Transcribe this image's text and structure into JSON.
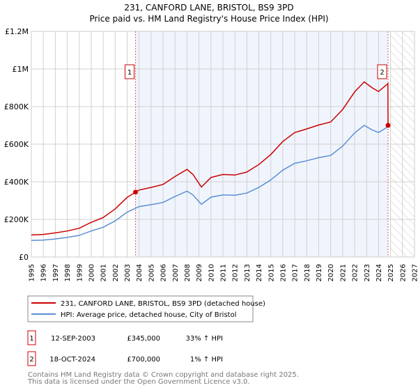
{
  "chart_data": {
    "type": "line",
    "title": "231, CANFORD LANE, BRISTOL, BS9 3PD",
    "subtitle": "Price paid vs. HM Land Registry's House Price Index (HPI)",
    "xlabel": "",
    "ylabel": "",
    "xlim": [
      1995,
      2027
    ],
    "ylim": [
      0,
      1200000
    ],
    "y_ticks": [
      0,
      200000,
      400000,
      600000,
      800000,
      1000000,
      1200000
    ],
    "y_tick_labels": [
      "£0",
      "£200K",
      "£400K",
      "£600K",
      "£800K",
      "£1M",
      "£1.2M"
    ],
    "x_ticks": [
      1995,
      1996,
      1997,
      1998,
      1999,
      2000,
      2001,
      2002,
      2003,
      2004,
      2005,
      2006,
      2007,
      2008,
      2009,
      2010,
      2011,
      2012,
      2013,
      2014,
      2015,
      2016,
      2017,
      2018,
      2019,
      2020,
      2021,
      2022,
      2023,
      2024,
      2025,
      2026,
      2027
    ],
    "grid": true,
    "hatched_future_from": 2025,
    "series": [
      {
        "name": "231, CANFORD LANE, BRISTOL, BS9 3PD (detached house)",
        "color": "#cc0000",
        "x": [
          1995,
          1996,
          1997,
          1998,
          1999,
          2000,
          2001,
          2002,
          2003,
          2004,
          2005,
          2006,
          2007,
          2008,
          2008.5,
          2009.2,
          2010,
          2011,
          2012,
          2013,
          2014,
          2015,
          2016,
          2017,
          2018,
          2019,
          2020,
          2021,
          2022,
          2022.8,
          2023.5,
          2024,
          2024.78,
          2024.79
        ],
        "y": [
          117000,
          120000,
          128000,
          138000,
          153000,
          184000,
          210000,
          255000,
          317000,
          356000,
          370000,
          386000,
          428000,
          466000,
          439000,
          372000,
          423000,
          439000,
          436000,
          452000,
          492000,
          545000,
          614000,
          662000,
          681000,
          702000,
          718000,
          785000,
          878000,
          931000,
          898000,
          880000,
          922000,
          700000
        ]
      },
      {
        "name": "HPI: Average price, detached house, City of Bristol",
        "color": "#5b8fd4",
        "x": [
          1995,
          1996,
          1997,
          1998,
          1999,
          2000,
          2001,
          2002,
          2003,
          2004,
          2005,
          2006,
          2007,
          2008,
          2008.5,
          2009.2,
          2010,
          2011,
          2012,
          2013,
          2014,
          2015,
          2016,
          2017,
          2018,
          2019,
          2020,
          2021,
          2022,
          2022.8,
          2023.5,
          2024,
          2024.79
        ],
        "y": [
          88000,
          90000,
          96000,
          104000,
          115000,
          138000,
          158000,
          192000,
          238000,
          268000,
          278000,
          290000,
          322000,
          350000,
          330000,
          280000,
          318000,
          330000,
          328000,
          340000,
          370000,
          410000,
          462000,
          498000,
          512000,
          528000,
          540000,
          590000,
          660000,
          700000,
          675000,
          662000,
          693000
        ]
      }
    ],
    "sales": [
      {
        "label": "1",
        "x": 2003.7,
        "price": 345000,
        "date": "12-SEP-2003",
        "price_text": "£345,000",
        "hpi_text": "33% ↑ HPI"
      },
      {
        "label": "2",
        "x": 2024.79,
        "price": 700000,
        "date": "18-OCT-2024",
        "price_text": "£700,000",
        "hpi_text": "1% ↑ HPI"
      }
    ]
  },
  "footer": {
    "line1": "Contains HM Land Registry data © Crown copyright and database right 2025.",
    "line2": "This data is licensed under the Open Government Licence v3.0."
  }
}
